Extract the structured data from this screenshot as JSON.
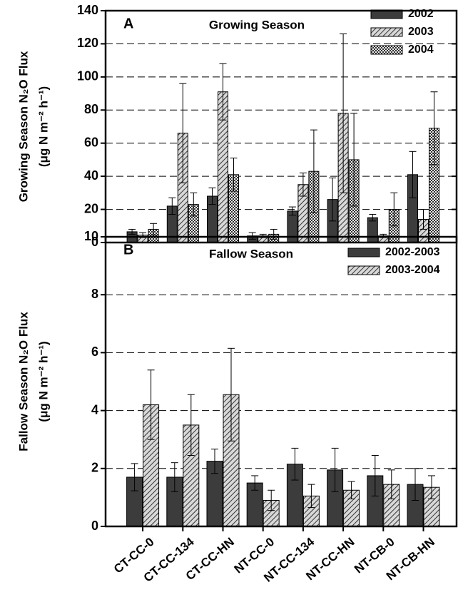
{
  "chart_data": [
    {
      "type": "bar",
      "panel_label": "A",
      "title": "Growing Season",
      "ylabel": "Growing Season N₂O Flux",
      "yunit": "(μg N m⁻² h⁻¹)",
      "series": [
        {
          "name": "2002",
          "color": "#3c3c3c",
          "pattern": "solid",
          "values": [
            6.5,
            22,
            28,
            4,
            19,
            26,
            15,
            41
          ],
          "errors": [
            1.5,
            5,
            5,
            2,
            2.5,
            13,
            2,
            14
          ]
        },
        {
          "name": "2003",
          "color": "#9a9a9a",
          "pattern": "diagonal",
          "values": [
            4.5,
            66,
            91,
            4,
            35,
            78,
            4,
            14
          ],
          "errors": [
            1.5,
            30,
            17,
            1,
            7,
            48,
            1,
            6
          ]
        },
        {
          "name": "2004",
          "color": "#c8c8c8",
          "pattern": "checker",
          "values": [
            8,
            23,
            41,
            5,
            43,
            50,
            20,
            69
          ],
          "errors": [
            3.5,
            7,
            10,
            3,
            25,
            28,
            10,
            22
          ]
        }
      ],
      "ylim": [
        0,
        140
      ],
      "yticks": [
        0,
        20,
        40,
        60,
        80,
        100,
        120,
        140
      ],
      "grid": true
    },
    {
      "type": "bar",
      "panel_label": "B",
      "title": "Fallow Season",
      "ylabel": "Fallow Season N₂O Flux",
      "yunit": "(μg N m⁻² h⁻¹)",
      "categories": [
        "CT-CC-0",
        "CT-CC-134",
        "CT-CC-HN",
        "NT-CC-0",
        "NT-CC-134",
        "NT-CC-HN",
        "NT-CB-0",
        "NT-CB-HN"
      ],
      "series": [
        {
          "name": "2002-2003",
          "color": "#3c3c3c",
          "pattern": "solid",
          "values": [
            1.7,
            1.7,
            2.25,
            1.5,
            2.15,
            1.95,
            1.75,
            1.45
          ],
          "errors": [
            0.47,
            0.5,
            0.42,
            0.25,
            0.55,
            0.75,
            0.7,
            0.55
          ]
        },
        {
          "name": "2003-2004",
          "color": "#9a9a9a",
          "pattern": "diagonal",
          "values": [
            4.2,
            3.5,
            4.55,
            0.9,
            1.05,
            1.25,
            1.45,
            1.35
          ],
          "errors": [
            1.2,
            1.05,
            1.6,
            0.35,
            0.4,
            0.3,
            0.5,
            0.4
          ]
        }
      ],
      "ylim": [
        0,
        10
      ],
      "yticks": [
        0,
        2,
        4,
        6,
        8,
        10
      ],
      "grid": true
    }
  ]
}
